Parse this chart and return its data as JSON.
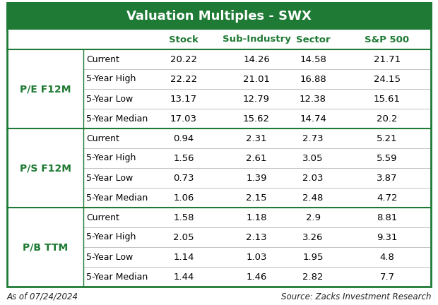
{
  "title": "Valuation Multiples - SWX",
  "title_bg_color": "#1e7a34",
  "title_text_color": "#ffffff",
  "header_col_color": "#1e7a34",
  "row_groups": [
    {
      "group_label": "P/E F12M",
      "rows": [
        [
          "Current",
          "20.22",
          "14.26",
          "14.58",
          "21.71"
        ],
        [
          "5-Year High",
          "22.22",
          "21.01",
          "16.88",
          "24.15"
        ],
        [
          "5-Year Low",
          "13.17",
          "12.79",
          "12.38",
          "15.61"
        ],
        [
          "5-Year Median",
          "17.03",
          "15.62",
          "14.74",
          "20.2"
        ]
      ]
    },
    {
      "group_label": "P/S F12M",
      "rows": [
        [
          "Current",
          "0.94",
          "2.31",
          "2.73",
          "5.21"
        ],
        [
          "5-Year High",
          "1.56",
          "2.61",
          "3.05",
          "5.59"
        ],
        [
          "5-Year Low",
          "0.73",
          "1.39",
          "2.03",
          "3.87"
        ],
        [
          "5-Year Median",
          "1.06",
          "2.15",
          "2.48",
          "4.72"
        ]
      ]
    },
    {
      "group_label": "P/B TTM",
      "rows": [
        [
          "Current",
          "1.58",
          "1.18",
          "2.9",
          "8.81"
        ],
        [
          "5-Year High",
          "2.05",
          "2.13",
          "3.26",
          "9.31"
        ],
        [
          "5-Year Low",
          "1.14",
          "1.03",
          "1.95",
          "4.8"
        ],
        [
          "5-Year Median",
          "1.44",
          "1.46",
          "2.82",
          "7.7"
        ]
      ]
    }
  ],
  "col_headers": [
    "Stock",
    "Sub-Industry",
    "Sector",
    "S&P 500"
  ],
  "footer_left": "As of 07/24/2024",
  "footer_right": "Source: Zacks Investment Research",
  "border_color": "#1e7a34",
  "group_label_color": "#1e7a34",
  "text_color": "#000000",
  "bg_color": "#ffffff",
  "title_fontsize": 13,
  "header_fontsize": 9.5,
  "group_fontsize": 10,
  "row_label_fontsize": 9,
  "data_fontsize": 9.5,
  "footer_fontsize": 8.5
}
